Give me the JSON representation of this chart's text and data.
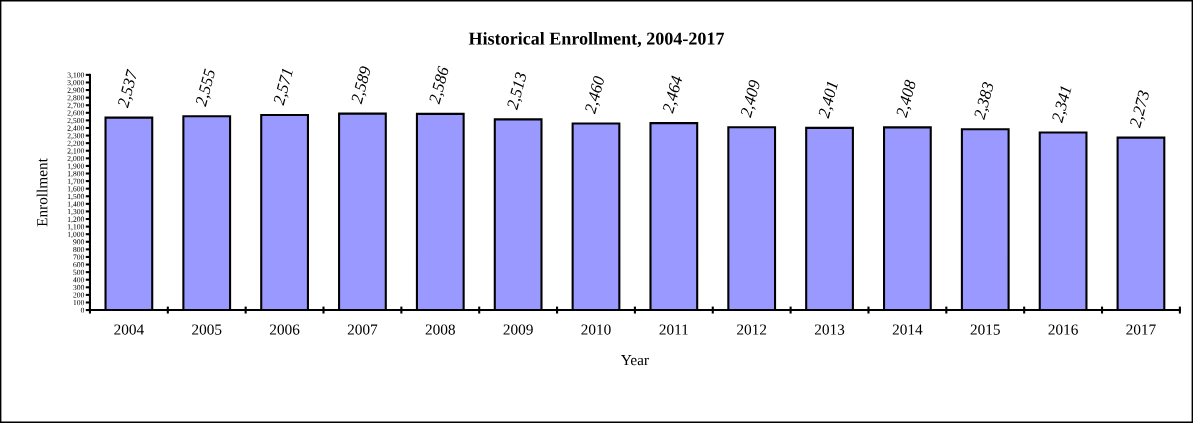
{
  "chart_data": {
    "type": "bar",
    "title": "Historical Enrollment, 2004-2017",
    "xlabel": "Year",
    "ylabel": "Enrollment",
    "categories": [
      "2004",
      "2005",
      "2006",
      "2007",
      "2008",
      "2009",
      "2010",
      "2011",
      "2012",
      "2013",
      "2014",
      "2015",
      "2016",
      "2017"
    ],
    "values": [
      2537,
      2555,
      2571,
      2589,
      2586,
      2513,
      2460,
      2464,
      2409,
      2401,
      2408,
      2383,
      2341,
      2273
    ],
    "value_labels": [
      "2,537",
      "2,555",
      "2,571",
      "2,589",
      "2,586",
      "2,513",
      "2,460",
      "2,464",
      "2,409",
      "2,401",
      "2,408",
      "2,383",
      "2,341",
      "2,273"
    ],
    "color": "#9999ff",
    "ylim": [
      0,
      3100
    ],
    "yticks": [
      {
        "value": 0,
        "label": "0"
      },
      {
        "value": 100,
        "label": "100"
      },
      {
        "value": 200,
        "label": "200"
      },
      {
        "value": 300,
        "label": "300"
      },
      {
        "value": 400,
        "label": "400"
      },
      {
        "value": 500,
        "label": "500"
      },
      {
        "value": 600,
        "label": "600"
      },
      {
        "value": 700,
        "label": "700"
      },
      {
        "value": 800,
        "label": "800"
      },
      {
        "value": 900,
        "label": "900"
      },
      {
        "value": 1000,
        "label": "1,000"
      },
      {
        "value": 1100,
        "label": "1,100"
      },
      {
        "value": 1200,
        "label": "1,200"
      },
      {
        "value": 1300,
        "label": "1,300"
      },
      {
        "value": 1400,
        "label": "1,400"
      },
      {
        "value": 1500,
        "label": "1,500"
      },
      {
        "value": 1600,
        "label": "1,600"
      },
      {
        "value": 1700,
        "label": "1,700"
      },
      {
        "value": 1800,
        "label": "1,800"
      },
      {
        "value": 1900,
        "label": "1,900"
      },
      {
        "value": 2000,
        "label": "2,000"
      },
      {
        "value": 2100,
        "label": "2,100"
      },
      {
        "value": 2200,
        "label": "2,200"
      },
      {
        "value": 2300,
        "label": "2,300"
      },
      {
        "value": 2400,
        "label": "2,400"
      },
      {
        "value": 2500,
        "label": "2,500"
      },
      {
        "value": 2600,
        "label": "2,600"
      },
      {
        "value": 2700,
        "label": "2,700"
      },
      {
        "value": 2800,
        "label": "2,800"
      },
      {
        "value": 2900,
        "label": "2,900"
      },
      {
        "value": 3000,
        "label": "3,000"
      },
      {
        "value": 3100,
        "label": "3,100"
      }
    ],
    "grid": false,
    "legend": false
  }
}
